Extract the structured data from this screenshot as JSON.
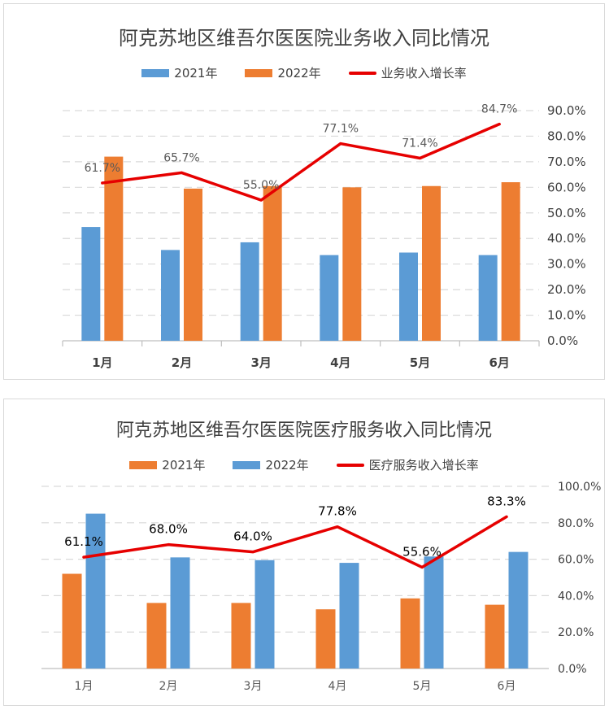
{
  "chart_data": [
    {
      "type": "bar",
      "title": "阿克苏地区维吾尔医医院业务收入同比情况",
      "categories": [
        "1月",
        "2月",
        "3月",
        "4月",
        "5月",
        "6月"
      ],
      "series": [
        {
          "name": "2021年",
          "kind": "bar",
          "color": "#5B9BD5",
          "values": [
            44.5,
            35.5,
            38.5,
            33.5,
            34.5,
            33.5
          ]
        },
        {
          "name": "2022年",
          "kind": "bar",
          "color": "#ED7D31",
          "values": [
            72,
            59.5,
            60.5,
            60,
            60.5,
            62
          ]
        },
        {
          "name": "业务收入增长率",
          "kind": "line",
          "color": "#E60000",
          "axis": "right",
          "values": [
            61.7,
            65.7,
            55.0,
            77.1,
            71.4,
            84.7
          ],
          "labels": [
            "61.7%",
            "65.7%",
            "55.0%",
            "77.1%",
            "71.4%",
            "84.7%"
          ]
        }
      ],
      "left_axis": {
        "show_labels": false,
        "ylim": [
          0,
          90
        ]
      },
      "right_axis": {
        "ylim": [
          0,
          90
        ],
        "tick_labels": [
          "90.0%",
          "80.0%",
          "70.0%",
          "60.0%",
          "50.0%",
          "40.0%",
          "30.0%",
          "20.0%",
          "10.0%",
          "0.0%"
        ]
      },
      "grid": true,
      "legend": "top"
    },
    {
      "type": "bar",
      "title": "阿克苏地区维吾尔医医院医疗服务收入同比情况",
      "categories": [
        "1月",
        "2月",
        "3月",
        "4月",
        "5月",
        "6月"
      ],
      "series": [
        {
          "name": "2021年",
          "kind": "bar",
          "color": "#ED7D31",
          "values": [
            52,
            36,
            36,
            32.5,
            38.5,
            35
          ]
        },
        {
          "name": "2022年",
          "kind": "bar",
          "color": "#5B9BD5",
          "values": [
            85,
            61,
            59.5,
            58,
            61.5,
            64
          ]
        },
        {
          "name": "医疗服务收入增长率",
          "kind": "line",
          "color": "#E60000",
          "axis": "right",
          "values": [
            61.1,
            68.0,
            64.0,
            77.8,
            55.6,
            83.3
          ],
          "labels": [
            "61.1%",
            "68.0%",
            "64.0%",
            "77.8%",
            "55.6%",
            "83.3%"
          ]
        }
      ],
      "left_axis": {
        "show_labels": false,
        "ylim": [
          0,
          100
        ]
      },
      "right_axis": {
        "ylim": [
          0,
          100
        ],
        "tick_labels": [
          "100.0%",
          "80.0%",
          "60.0%",
          "40.0%",
          "20.0%",
          "0.0%"
        ]
      },
      "grid": true,
      "legend": "top"
    }
  ]
}
